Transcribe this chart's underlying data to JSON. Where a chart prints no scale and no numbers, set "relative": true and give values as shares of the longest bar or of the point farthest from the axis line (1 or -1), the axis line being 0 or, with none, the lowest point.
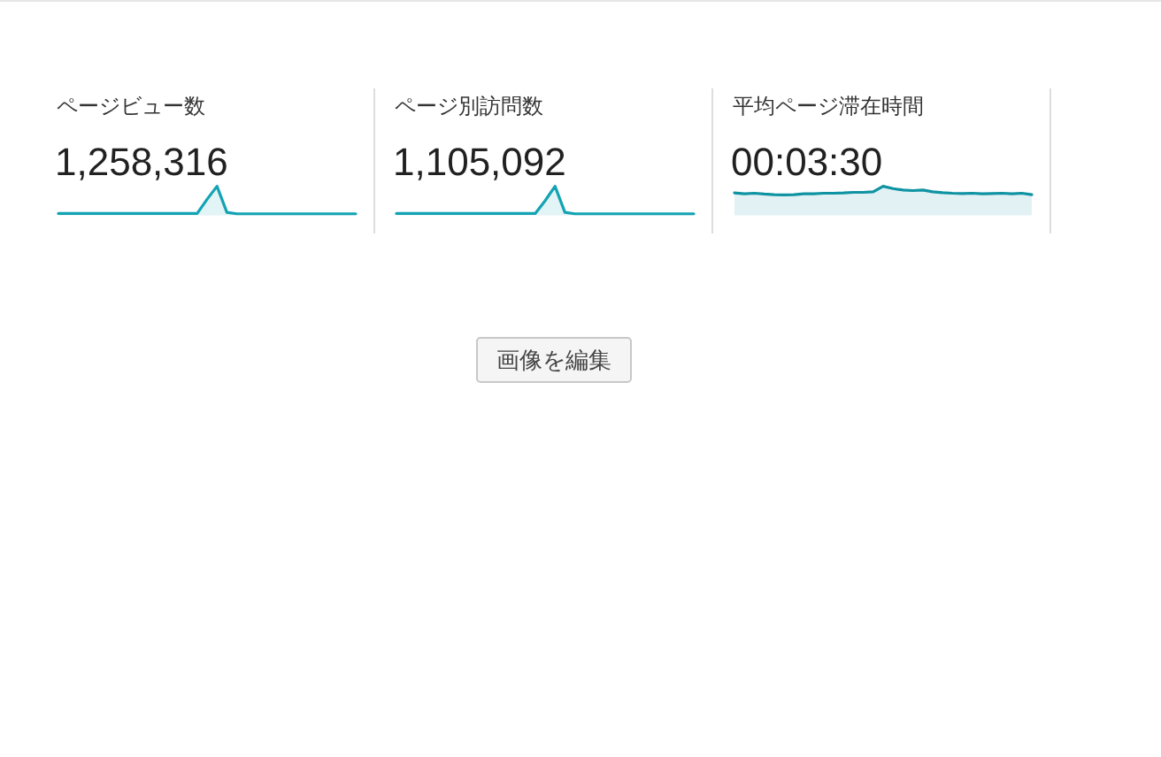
{
  "chart_data": [
    {
      "type": "area",
      "title": "ページビュー数",
      "subtitle": "1,258,316",
      "relative": true,
      "color": "#13a3b3",
      "categories": [
        null,
        null,
        null,
        null,
        null,
        null,
        null,
        null,
        null,
        null,
        null,
        null,
        null,
        null,
        null,
        null,
        null,
        null,
        null,
        null,
        null,
        null,
        null,
        null,
        null,
        null,
        null,
        null,
        null,
        null,
        null
      ],
      "values": [
        0.06,
        0.06,
        0.06,
        0.06,
        0.06,
        0.06,
        0.06,
        0.06,
        0.06,
        0.06,
        0.06,
        0.06,
        0.06,
        0.06,
        0.06,
        0.55,
        1,
        0.1,
        0.05,
        0.05,
        0.05,
        0.05,
        0.05,
        0.05,
        0.05,
        0.05,
        0.05,
        0.05,
        0.05,
        0.05,
        0.05
      ]
    },
    {
      "type": "area",
      "title": "ページ別訪問数",
      "subtitle": "1,105,092",
      "relative": true,
      "color": "#13a3b3",
      "categories": [
        null,
        null,
        null,
        null,
        null,
        null,
        null,
        null,
        null,
        null,
        null,
        null,
        null,
        null,
        null,
        null,
        null,
        null,
        null,
        null,
        null,
        null,
        null,
        null,
        null,
        null,
        null,
        null,
        null,
        null,
        null
      ],
      "values": [
        0.06,
        0.06,
        0.06,
        0.06,
        0.06,
        0.06,
        0.06,
        0.06,
        0.06,
        0.06,
        0.06,
        0.06,
        0.06,
        0.06,
        0.06,
        0.5,
        1,
        0.1,
        0.05,
        0.05,
        0.05,
        0.05,
        0.05,
        0.05,
        0.05,
        0.05,
        0.05,
        0.05,
        0.05,
        0.05,
        0.05
      ]
    },
    {
      "type": "area",
      "title": "平均ページ滞在時間",
      "subtitle": "00:03:30",
      "relative": true,
      "color": "#0f93a3",
      "categories": [
        null,
        null,
        null,
        null,
        null,
        null,
        null,
        null,
        null,
        null,
        null,
        null,
        null,
        null,
        null,
        null,
        null,
        null,
        null,
        null,
        null,
        null,
        null,
        null,
        null,
        null,
        null,
        null,
        null,
        null,
        null
      ],
      "values": [
        0.77,
        0.74,
        0.76,
        0.73,
        0.71,
        0.7,
        0.71,
        0.74,
        0.74,
        0.76,
        0.76,
        0.77,
        0.79,
        0.79,
        0.81,
        1,
        0.92,
        0.87,
        0.85,
        0.87,
        0.81,
        0.78,
        0.76,
        0.75,
        0.76,
        0.74,
        0.75,
        0.76,
        0.74,
        0.76,
        0.71
      ]
    },
    {
      "type": "other",
      "annotations": [
        "画像を編集"
      ]
    }
  ]
}
